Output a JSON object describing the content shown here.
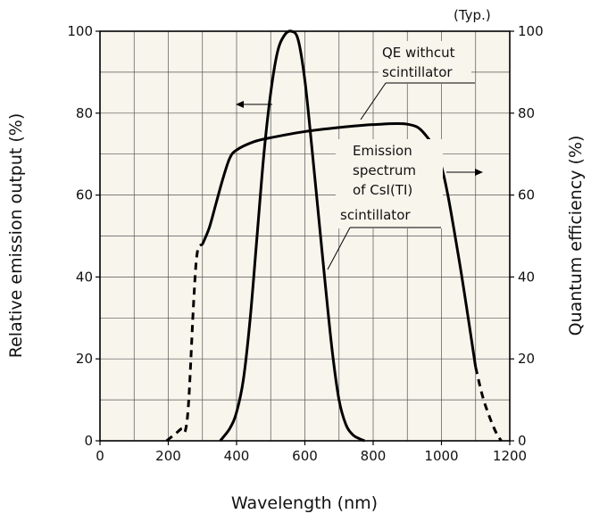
{
  "chart_data": {
    "type": "line",
    "note": "(Typ.)",
    "xlabel": "Wavelength (nm)",
    "ylabel_left": "Relative emission output (%)",
    "ylabel_right": "Quantum efficiency (%)",
    "xlim": [
      0,
      1200
    ],
    "ylim": [
      0,
      100
    ],
    "grid": true,
    "x_ticks": [
      "0",
      "200",
      "400",
      "600",
      "800",
      "1000",
      "1200"
    ],
    "y_ticks": [
      "0",
      "20",
      "40",
      "60",
      "80",
      "100"
    ],
    "series": [
      {
        "name": "Emission spectrum of CsI(TI) scintillator",
        "axis": "left",
        "style": "solid",
        "x": [
          352,
          380,
          400,
          420,
          440,
          460,
          480,
          500,
          520,
          540,
          560,
          580,
          600,
          620,
          640,
          660,
          680,
          700,
          720,
          740,
          760,
          775
        ],
        "y": [
          0,
          3,
          7,
          15,
          30,
          50,
          70,
          85,
          95,
          99,
          100,
          98,
          88,
          72,
          55,
          38,
          22,
          10,
          4,
          1.5,
          0.5,
          0
        ]
      },
      {
        "name": "QE withcut scintillator",
        "axis": "right",
        "segments": [
          {
            "style": "dashed",
            "x": [
              195,
              210,
              225,
              240,
              250,
              260,
              275,
              285,
              300
            ],
            "y": [
              0,
              1,
              2,
              3,
              2.5,
              10,
              35,
              46,
              48
            ]
          },
          {
            "style": "solid",
            "x": [
              300,
              320,
              340,
              360,
              380,
              400,
              450,
              500,
              600,
              700,
              800,
              900,
              950,
              1000,
              1050,
              1100
            ],
            "y": [
              48,
              52,
              58,
              64,
              69,
              71,
              73,
              74,
              75.5,
              76.5,
              77.2,
              77.3,
              75,
              67,
              45,
              18
            ]
          },
          {
            "style": "dashed",
            "x": [
              1100,
              1120,
              1140,
              1160,
              1175
            ],
            "y": [
              18,
              11,
              6,
              2,
              0
            ]
          }
        ]
      }
    ],
    "annotations": [
      {
        "lines": [
          "QE withcut",
          "scintillator"
        ]
      },
      {
        "lines": [
          "Emission",
          "spectrum",
          "of CsI(TI)",
          "scintillator"
        ]
      }
    ]
  }
}
